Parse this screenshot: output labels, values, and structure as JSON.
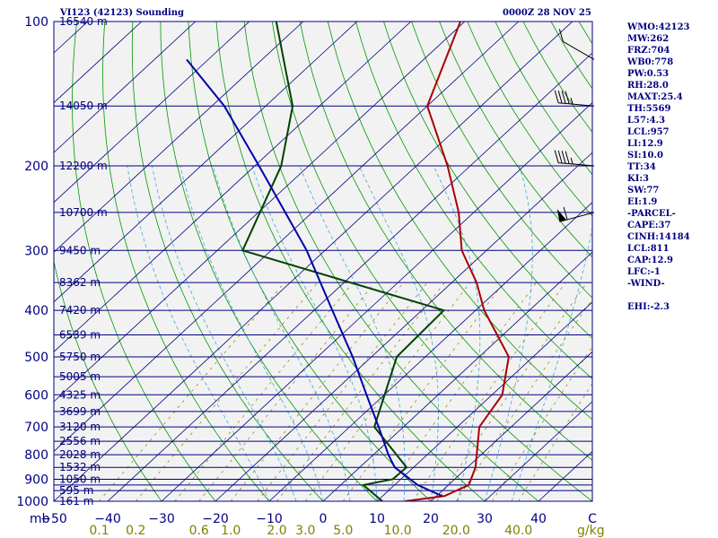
{
  "header": {
    "station_title": "VI123 (42123) Sounding",
    "time_title": "0000Z 28 NOV 25"
  },
  "indices": [
    "WMO:42123",
    "MW:262",
    "FRZ:704",
    "WB0:778",
    "PW:0.53",
    "RH:28.0",
    "MAXT:25.4",
    "TH:5569",
    "L57:4.3",
    "LCL:957",
    "LI:12.9",
    "SI:10.0",
    "TT:34",
    "KI:3",
    "SW:77",
    "EI:1.9",
    "-PARCEL-",
    "CAPE:37",
    "CINH:14184",
    "LCL:811",
    "CAP:12.9",
    "LFC:-1",
    "-WIND-",
    "",
    "EHI:-2.3"
  ],
  "colors": {
    "background": "#f2f2f2",
    "frame": "#000080",
    "isotherm": "#000080",
    "dry_adiabat": "#009900",
    "moist_adiabat": "#3fa9d6",
    "mixing_ratio": "#808000",
    "temperature": "#aa0000",
    "dewpoint": "#004000",
    "parcel": "#0000aa",
    "labels": "#000080",
    "mixing_labels": "#808000"
  },
  "chart_data": {
    "type": "line",
    "chart_kind": "skew-T log-P sounding",
    "x_unit_label": "mb",
    "xlim": [
      -50,
      50
    ],
    "ylim": [
      1000,
      100
    ],
    "y_scale": "log",
    "x_ticks": [
      -50,
      -40,
      -30,
      -20,
      -10,
      0,
      10,
      20,
      30,
      40,
      50
    ],
    "x_tick_labels": [
      "−50",
      "−40",
      "−30",
      "−20",
      "−10",
      "0",
      "10",
      "20",
      "30",
      "40",
      "C"
    ],
    "pressure_ticks": [
      {
        "p": 100,
        "label": "100"
      },
      {
        "p": 200,
        "label": "200"
      },
      {
        "p": 300,
        "label": "300"
      },
      {
        "p": 400,
        "label": "400"
      },
      {
        "p": 500,
        "label": "500"
      },
      {
        "p": 600,
        "label": "600"
      },
      {
        "p": 700,
        "label": "700"
      },
      {
        "p": 800,
        "label": "800"
      },
      {
        "p": 900,
        "label": "900"
      },
      {
        "p": 1000,
        "label": "1000"
      }
    ],
    "height_labels": [
      {
        "p": 100,
        "label": "16540 m"
      },
      {
        "p": 150,
        "label": "14050 m"
      },
      {
        "p": 200,
        "label": "12200 m"
      },
      {
        "p": 250,
        "label": "10700 m"
      },
      {
        "p": 300,
        "label": "9450 m"
      },
      {
        "p": 350,
        "label": "8362 m"
      },
      {
        "p": 400,
        "label": "7420 m"
      },
      {
        "p": 450,
        "label": "6539 m"
      },
      {
        "p": 500,
        "label": "5750 m"
      },
      {
        "p": 550,
        "label": "5005 m"
      },
      {
        "p": 600,
        "label": "4325 m"
      },
      {
        "p": 650,
        "label": "3699 m"
      },
      {
        "p": 700,
        "label": "3120 m"
      },
      {
        "p": 750,
        "label": "2556 m"
      },
      {
        "p": 800,
        "label": "2028 m"
      },
      {
        "p": 850,
        "label": "1532 m"
      },
      {
        "p": 900,
        "label": "1050 m"
      },
      {
        "p": 950,
        "label": "595 m"
      },
      {
        "p": 1000,
        "label": "161 m"
      }
    ],
    "isobars": [
      100,
      150,
      200,
      250,
      300,
      350,
      400,
      450,
      500,
      550,
      600,
      650,
      700,
      750,
      800,
      850,
      900,
      925,
      950,
      1000
    ],
    "isotherms": [
      -150,
      -140,
      -130,
      -120,
      -110,
      -100,
      -90,
      -80,
      -70,
      -60,
      -50,
      -40,
      -30,
      -20,
      -10,
      0,
      10,
      20,
      30,
      40,
      50
    ],
    "dry_adiabats_theta_C": [
      -30,
      -20,
      -10,
      0,
      10,
      20,
      30,
      40,
      50,
      60,
      70,
      80,
      90,
      100,
      110,
      120,
      130,
      140,
      150,
      160,
      170,
      180,
      190,
      200
    ],
    "moist_adiabats_C": [
      -10,
      -5,
      0,
      5,
      10,
      15,
      20,
      25,
      30,
      35
    ],
    "mixing_ratios_gkg": [
      0.1,
      0.2,
      0.4,
      0.6,
      1.0,
      1.5,
      2.0,
      3.0,
      5.0,
      8.0,
      12.0,
      16.0,
      20.0,
      30.0,
      40.0
    ],
    "mixing_ratio_labels": [
      {
        "w": 0.1,
        "label": "0.1"
      },
      {
        "w": 0.2,
        "label": "0.2"
      },
      {
        "w": 0.6,
        "label": "0.6"
      },
      {
        "w": 1.0,
        "label": "1.0"
      },
      {
        "w": 2.0,
        "label": "2.0"
      },
      {
        "w": 3.0,
        "label": "3.0"
      },
      {
        "w": 5.0,
        "label": "5.0"
      },
      {
        "w": 10.0,
        "label": "10.0"
      },
      {
        "w": 20.0,
        "label": "20.0"
      },
      {
        "w": 40.0,
        "label": "40.0"
      }
    ],
    "mixing_ratio_unit": "g/kg",
    "series": [
      {
        "key": "temperature",
        "points": [
          {
            "p": 1000,
            "t": 15.2
          },
          {
            "p": 975,
            "t": 21.5
          },
          {
            "p": 925,
            "t": 23.8
          },
          {
            "p": 850,
            "t": 21.5
          },
          {
            "p": 700,
            "t": 14.1
          },
          {
            "p": 600,
            "t": 11.9
          },
          {
            "p": 500,
            "t": 5.5
          },
          {
            "p": 400,
            "t": -8.4
          },
          {
            "p": 350,
            "t": -15.4
          },
          {
            "p": 300,
            "t": -24.6
          },
          {
            "p": 250,
            "t": -32.8
          },
          {
            "p": 200,
            "t": -44.2
          },
          {
            "p": 150,
            "t": -60.0
          },
          {
            "p": 100,
            "t": -70.8
          }
        ]
      },
      {
        "key": "dewpoint",
        "points": [
          {
            "p": 1000,
            "t": 11.0
          },
          {
            "p": 925,
            "t": 4.2
          },
          {
            "p": 900,
            "t": 8.5
          },
          {
            "p": 850,
            "t": 8.7
          },
          {
            "p": 700,
            "t": -5.4
          },
          {
            "p": 500,
            "t": -15.3
          },
          {
            "p": 400,
            "t": -15.9
          },
          {
            "p": 300,
            "t": -65.3
          },
          {
            "p": 200,
            "t": -75.1
          },
          {
            "p": 150,
            "t": -85.0
          },
          {
            "p": 100,
            "t": -105.0
          }
        ]
      },
      {
        "key": "parcel",
        "points": [
          {
            "p": 975,
            "t": 21.0
          },
          {
            "p": 925,
            "t": 14.3
          },
          {
            "p": 850,
            "t": 6.5
          },
          {
            "p": 800,
            "t": 2.8
          },
          {
            "p": 700,
            "t": -4.6
          },
          {
            "p": 600,
            "t": -13.3
          },
          {
            "p": 500,
            "t": -23.5
          },
          {
            "p": 400,
            "t": -36.6
          },
          {
            "p": 300,
            "t": -53.4
          },
          {
            "p": 200,
            "t": -79.2
          },
          {
            "p": 150,
            "t": -97.7
          },
          {
            "p": 120,
            "t": -114.0
          }
        ]
      }
    ],
    "wind_barbs": [
      {
        "p": 120,
        "dir": 300,
        "speed_kt": 10
      },
      {
        "p": 150,
        "dir": 275,
        "speed_kt": 45
      },
      {
        "p": 200,
        "dir": 275,
        "speed_kt": 45
      },
      {
        "p": 250,
        "dir": 255,
        "speed_kt": 60
      }
    ]
  }
}
